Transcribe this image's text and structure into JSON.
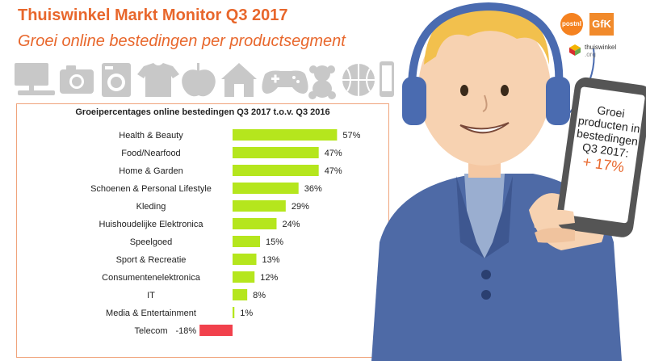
{
  "header": {
    "title": "Thuiswinkel Markt Monitor Q3 2017",
    "subtitle": "Groei online bestedingen per productsegment"
  },
  "icons": [
    "computer-icon",
    "camera-icon",
    "washing-machine-icon",
    "tshirt-icon",
    "apple-icon",
    "house-icon",
    "gamepad-icon",
    "teddy-bear-icon",
    "basketball-icon",
    "smartphone-icon"
  ],
  "chart_data": {
    "type": "bar",
    "orientation": "horizontal",
    "title": "Groeipercentages online bestedingen Q3 2017 t.o.v. Q3 2016",
    "categories": [
      "Health & Beauty",
      "Food/Nearfood",
      "Home & Garden",
      "Schoenen & Personal Lifestyle",
      "Kleding",
      "Huishoudelijke Elektronica",
      "Speelgoed",
      "Sport & Recreatie",
      "Consumentenelektronica",
      "IT",
      "Media & Entertainment",
      "Telecom"
    ],
    "values": [
      57,
      47,
      47,
      36,
      29,
      24,
      15,
      13,
      12,
      8,
      1,
      -18
    ],
    "labels": [
      "57%",
      "47%",
      "47%",
      "36%",
      "29%",
      "24%",
      "15%",
      "13%",
      "12%",
      "8%",
      "1%",
      "-18%"
    ],
    "positive_color": "#b5e61d",
    "negative_color": "#f1414c"
  },
  "phone": {
    "lines": [
      "Groei",
      "producten in",
      "bestedingen",
      "Q3 2017:"
    ],
    "highlight": "+ 17%"
  },
  "logos": {
    "postnl": "postnl",
    "gfk": "GfK",
    "thuiswinkel": "thuiswinkel",
    "thuiswinkel_org": ".org"
  },
  "colors": {
    "accent": "#e8672c",
    "icon_gray": "#c8c8c8"
  }
}
